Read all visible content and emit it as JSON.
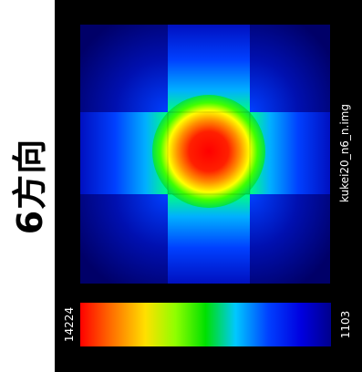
{
  "side_title": "6方向",
  "filename": "kukei20_n6_n.img",
  "colorbar": {
    "max_label": "14224",
    "min_label": "1103",
    "stops": [
      "#ff0000",
      "#ff6a00",
      "#ffe000",
      "#8fff00",
      "#00e000",
      "#00c8ff",
      "#0040ff",
      "#0000e0",
      "#00008c"
    ]
  },
  "chart_data": {
    "type": "heatmap",
    "grid": [
      3,
      3
    ],
    "value_range": [
      1103,
      14224
    ],
    "colors": {
      "center_hot": "#ff0000",
      "ring": "#ffff00",
      "green": "#00ff00",
      "arm": "#0050ff",
      "corner": "#000070",
      "background": "#000000"
    }
  }
}
